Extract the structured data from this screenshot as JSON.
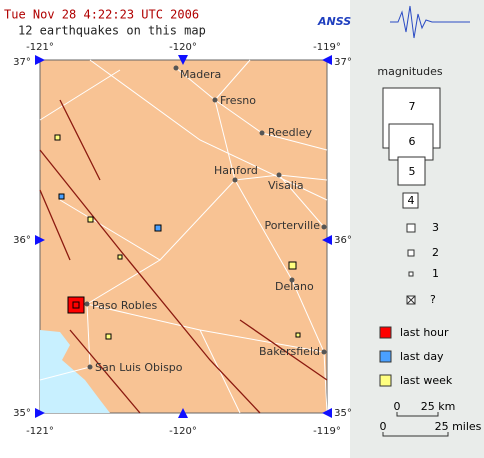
{
  "header": {
    "title": "Tue Nov 28 4:22:23 UTC 2006",
    "subtitle": "12 earthquakes on this map",
    "logo": "ANSS"
  },
  "map": {
    "lon_labels": [
      "-121°",
      "-120°",
      "-119°"
    ],
    "lat_labels": [
      "37°",
      "36°",
      "35°"
    ],
    "cities": [
      "Madera",
      "Fresno",
      "Reedley",
      "Hanford",
      "Visalia",
      "Porterville",
      "Delano",
      "Paso Robles",
      "Bakersfield",
      "San Luis Obispo"
    ]
  },
  "legend": {
    "title": "magnitudes",
    "magnitudes": [
      "7",
      "6",
      "5",
      "4",
      "3",
      "2",
      "1",
      "?"
    ],
    "ages": [
      "last hour",
      "last day",
      "last week"
    ],
    "scale_km": [
      "0",
      "25 km"
    ],
    "scale_miles": [
      "0",
      "25 miles"
    ]
  }
}
